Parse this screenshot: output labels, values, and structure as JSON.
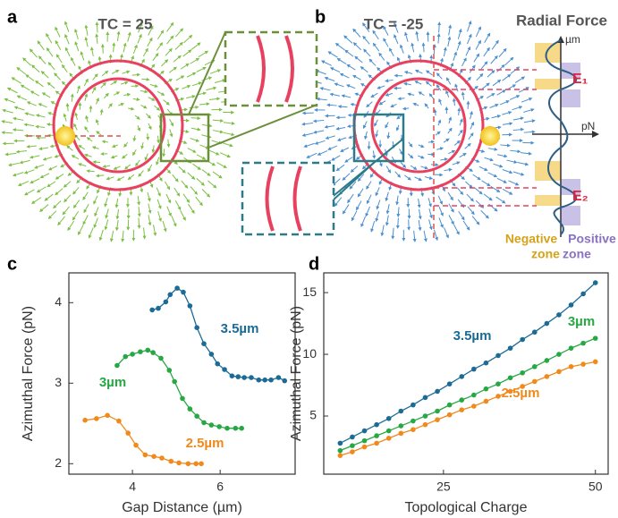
{
  "panels": {
    "a": {
      "letter": "a",
      "title": "TC = 25"
    },
    "b": {
      "letter": "b",
      "title": "TC = -25",
      "radial_title": "Radial Force",
      "y_unit": "µm",
      "x_unit": "pN",
      "e1": "E₁",
      "e2": "E₂",
      "negative": "Negative",
      "negative_2": "zone",
      "positive": "Positive",
      "positive_2": "zone"
    },
    "c": {
      "letter": "c"
    },
    "d": {
      "letter": "d"
    }
  },
  "chart_data": [
    {
      "type": "line",
      "x_label": "Gap Distance (µm)",
      "y_label": "Azimuthal Force (pN)",
      "xlim": [
        2.55,
        7.71
      ],
      "ylim": [
        1.87,
        4.37
      ],
      "xticks": [
        4,
        6
      ],
      "yticks": [
        2,
        3,
        4
      ],
      "grid": false,
      "series": [
        {
          "name": "2.5µm",
          "color": "#f08a1c",
          "x": [
            2.92,
            3.18,
            3.43,
            3.69,
            3.9,
            4.08,
            4.29,
            4.49,
            4.67,
            4.88,
            5.06,
            5.27,
            5.45,
            5.57
          ],
          "values": [
            2.54,
            2.56,
            2.6,
            2.53,
            2.38,
            2.23,
            2.11,
            2.09,
            2.07,
            2.03,
            2.01,
            2.0,
            2.0,
            2.0
          ]
        },
        {
          "name": "3µm",
          "color": "#27a844",
          "x": [
            3.65,
            3.84,
            4.0,
            4.18,
            4.35,
            4.47,
            4.65,
            4.84,
            4.96,
            5.14,
            5.31,
            5.47,
            5.63,
            5.8,
            5.98,
            6.16,
            6.35,
            6.49
          ],
          "values": [
            3.22,
            3.33,
            3.36,
            3.39,
            3.41,
            3.38,
            3.31,
            3.16,
            3.02,
            2.81,
            2.68,
            2.59,
            2.51,
            2.48,
            2.46,
            2.44,
            2.44,
            2.44
          ]
        },
        {
          "name": "3.5µm",
          "color": "#1b6b96",
          "x": [
            4.45,
            4.59,
            4.76,
            4.86,
            5.02,
            5.16,
            5.31,
            5.47,
            5.63,
            5.8,
            5.94,
            6.1,
            6.27,
            6.41,
            6.55,
            6.71,
            6.88,
            7.02,
            7.16,
            7.33,
            7.47
          ],
          "values": [
            3.91,
            3.93,
            4.01,
            4.1,
            4.18,
            4.13,
            3.96,
            3.69,
            3.49,
            3.36,
            3.24,
            3.17,
            3.09,
            3.08,
            3.07,
            3.07,
            3.04,
            3.04,
            3.04,
            3.07,
            3.03
          ]
        }
      ]
    },
    {
      "type": "line",
      "x_label": "Topological Charge",
      "y_label": "Azimuthal Force (pN)",
      "xlim": [
        5.3,
        52.1
      ],
      "ylim": [
        0.29,
        16.6
      ],
      "xticks": [
        25,
        50
      ],
      "yticks": [
        5,
        10,
        15
      ],
      "grid": false,
      "x": [
        8,
        10,
        12,
        14,
        16,
        18,
        20,
        22,
        24,
        26,
        28,
        30,
        32,
        34,
        36,
        38,
        40,
        42,
        44,
        46,
        48,
        50
      ],
      "series": [
        {
          "name": "2.5µm",
          "color": "#f08a1c",
          "values": [
            1.8,
            2.1,
            2.5,
            2.8,
            3.2,
            3.6,
            3.9,
            4.3,
            4.7,
            5.1,
            5.5,
            5.8,
            6.2,
            6.6,
            7.0,
            7.4,
            7.8,
            8.2,
            8.6,
            9.0,
            9.2,
            9.4
          ]
        },
        {
          "name": "3µm",
          "color": "#27a844",
          "values": [
            2.2,
            2.6,
            3.0,
            3.4,
            3.8,
            4.2,
            4.6,
            5.0,
            5.4,
            5.9,
            6.3,
            6.7,
            7.2,
            7.6,
            8.1,
            8.5,
            9.0,
            9.5,
            10.0,
            10.5,
            10.9,
            11.3
          ]
        },
        {
          "name": "3.5µm",
          "color": "#1b6b96",
          "values": [
            2.8,
            3.3,
            3.8,
            4.3,
            4.8,
            5.4,
            5.9,
            6.5,
            7.0,
            7.6,
            8.2,
            8.8,
            9.3,
            9.9,
            10.5,
            11.2,
            11.8,
            12.5,
            13.2,
            14.0,
            14.9,
            15.8
          ]
        }
      ]
    }
  ]
}
